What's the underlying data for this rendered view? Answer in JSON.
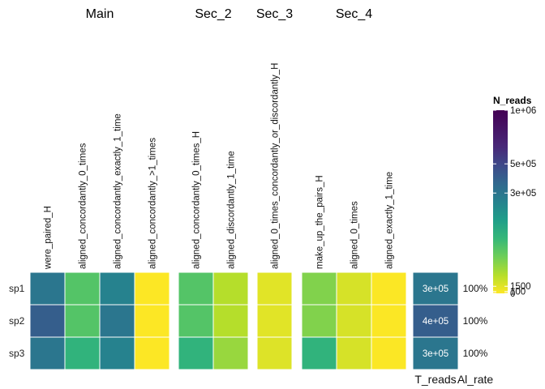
{
  "chart_data": {
    "type": "heatmap",
    "sections": [
      {
        "name": "Main",
        "columns": [
          "were_paired_H",
          "aligned_concordantly_0_times",
          "aligned_concordantly_exactly_1_time",
          "aligned_concordantly_>1_times"
        ]
      },
      {
        "name": "Sec_2",
        "columns": [
          "aligned_concordantly_0_times_H",
          "aligned_discordantly_1_time"
        ]
      },
      {
        "name": "Sec_3",
        "columns": [
          "aligned_0_times_concordantly_or_discordantly_H"
        ]
      },
      {
        "name": "Sec_4",
        "columns": [
          "make_up_the_pairs_H",
          "aligned_0_times",
          "aligned_exactly_1_time"
        ]
      }
    ],
    "rows": [
      "sp1",
      "sp2",
      "sp3"
    ],
    "values": [
      [
        300000,
        60000,
        250000,
        2,
        60000,
        10000,
        1500,
        30000,
        3000,
        10
      ],
      [
        400000,
        60000,
        300000,
        2,
        60000,
        10000,
        1500,
        30000,
        3000,
        10
      ],
      [
        300000,
        100000,
        250000,
        3,
        100000,
        20000,
        2000,
        100000,
        3000,
        10
      ]
    ],
    "t_reads": {
      "label": "T_reads",
      "values": [
        "3e+05",
        "4e+05",
        "3e+05"
      ],
      "raw": [
        300000,
        400000,
        300000
      ]
    },
    "al_rate": {
      "label": "Al_rate",
      "values": [
        "100%",
        "100%",
        "100%"
      ]
    },
    "legend": {
      "title": "N_reads",
      "scale": "sqrt",
      "range": [
        0,
        1000000
      ],
      "ticks": [
        {
          "value": 1000000,
          "label": "1e+06"
        },
        {
          "value": 500000,
          "label": "5e+05"
        },
        {
          "value": 300000,
          "label": "3e+05"
        },
        {
          "value": 1500,
          "label": "1500"
        },
        {
          "value": 100,
          "label": "100"
        },
        {
          "value": 0,
          "label": "0"
        }
      ],
      "colormap": "viridis",
      "placement": "right"
    }
  }
}
